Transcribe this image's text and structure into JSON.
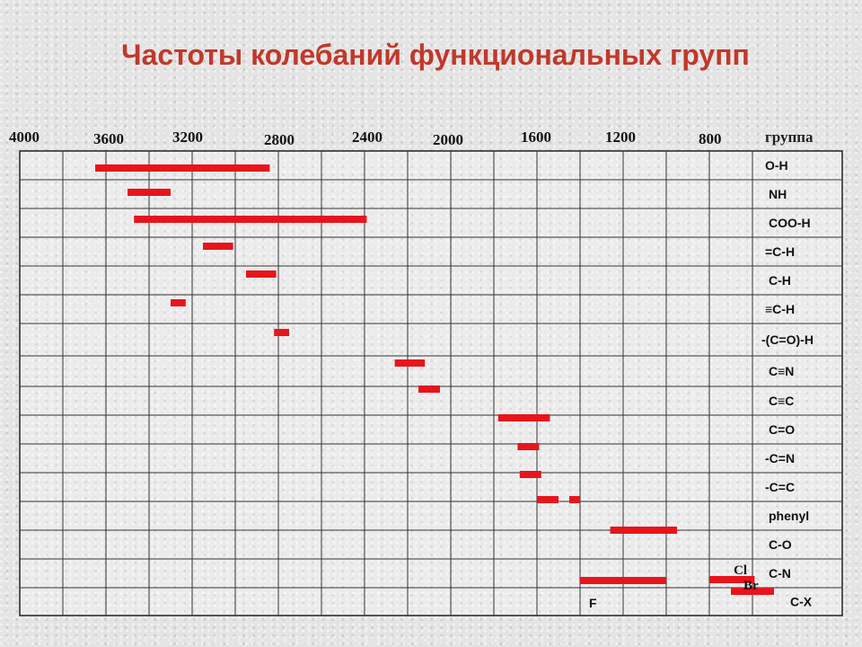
{
  "chart_data": {
    "type": "bar",
    "title": "Частоты колебаний функциональных групп",
    "x_ticks": [
      4000,
      3600,
      3200,
      2800,
      2400,
      2000,
      1600,
      1200,
      800
    ],
    "x_tick_labels": [
      "4000",
      "3600",
      "3200",
      "2800",
      "2400",
      "2000",
      "1600",
      "1200",
      "800"
    ],
    "xlim": [
      4000,
      600
    ],
    "column_header": "группа",
    "grid": true,
    "bar_color": "#e8141b",
    "groups": [
      {
        "label": "O-H",
        "ranges": [
          [
            3650,
            2840
          ]
        ]
      },
      {
        "label": "NH",
        "ranges": [
          [
            3500,
            3300
          ]
        ]
      },
      {
        "label": "COO-H",
        "ranges": [
          [
            3470,
            2390
          ]
        ]
      },
      {
        "label": "=C-H",
        "ranges": [
          [
            3150,
            3010
          ]
        ]
      },
      {
        "label": "C-H",
        "ranges": [
          [
            2950,
            2810
          ]
        ]
      },
      {
        "label": "≡C-H",
        "ranges": [
          [
            3300,
            3230
          ]
        ]
      },
      {
        "label": "-(C=O)-H",
        "ranges": [
          [
            2820,
            2750
          ]
        ]
      },
      {
        "label": "C≡N",
        "ranges": [
          [
            2260,
            2120
          ]
        ]
      },
      {
        "label": "C≡C",
        "ranges": [
          [
            2150,
            2050
          ]
        ]
      },
      {
        "label": "C=O",
        "ranges": [
          [
            1780,
            1540
          ]
        ]
      },
      {
        "label": "-C=N",
        "ranges": [
          [
            1690,
            1590
          ]
        ]
      },
      {
        "label": "-C=C",
        "ranges": [
          [
            1680,
            1580
          ]
        ]
      },
      {
        "label": "phenyl",
        "ranges": [
          [
            1600,
            1500
          ],
          [
            1450,
            1400
          ]
        ]
      },
      {
        "label": "C-O",
        "ranges": [
          [
            1260,
            950
          ]
        ]
      },
      {
        "label": "C-N",
        "ranges": [
          [
            1400,
            1000
          ],
          [
            800,
            590
          ]
        ]
      },
      {
        "label": "C-X",
        "ranges": [
          [
            700,
            500
          ]
        ]
      }
    ],
    "annotations": [
      "F",
      "Cl",
      "Br"
    ]
  }
}
